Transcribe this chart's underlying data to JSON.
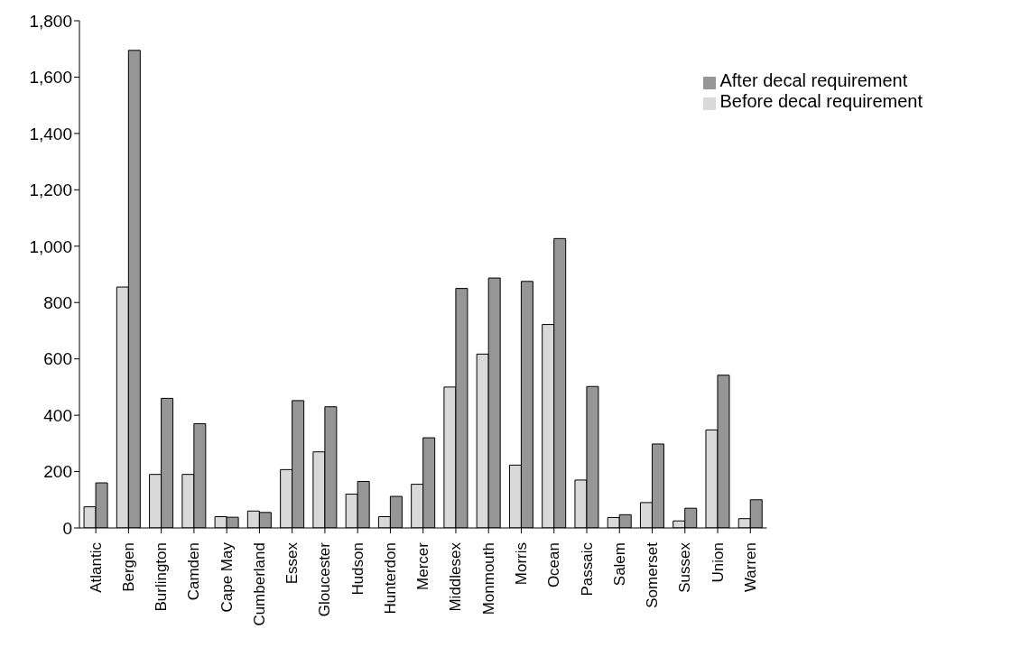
{
  "chart_data": {
    "type": "bar",
    "categories": [
      "Atlantic",
      "Bergen",
      "Burlington",
      "Camden",
      "Cape May",
      "Cumberland",
      "Essex",
      "Gloucester",
      "Hudson",
      "Hunterdon",
      "Mercer",
      "Middlesex",
      "Monmouth",
      "Morris",
      "Ocean",
      "Passaic",
      "Salem",
      "Somerset",
      "Sussex",
      "Union",
      "Warren"
    ],
    "series": [
      {
        "name": "Before decal requirement",
        "color": "#d9d9d9",
        "values": [
          75,
          855,
          190,
          190,
          40,
          60,
          207,
          270,
          120,
          40,
          155,
          500,
          617,
          223,
          722,
          170,
          37,
          90,
          25,
          348,
          33
        ]
      },
      {
        "name": "After decal requirement",
        "color": "#969696",
        "values": [
          160,
          1695,
          460,
          370,
          38,
          55,
          452,
          430,
          165,
          112,
          320,
          850,
          887,
          875,
          1027,
          502,
          47,
          298,
          70,
          542,
          100
        ]
      }
    ],
    "ylim": [
      0,
      1800
    ],
    "yticks": [
      0,
      200,
      400,
      600,
      800,
      {
        "value": 1000,
        "label": "1,000"
      },
      {
        "value": 1200,
        "label": "1,200"
      },
      {
        "value": 1400,
        "label": "1,400"
      },
      {
        "value": 1600,
        "label": "1,600"
      },
      {
        "value": 1800,
        "label": "1,800"
      }
    ],
    "grid": false,
    "legend": "top right"
  }
}
